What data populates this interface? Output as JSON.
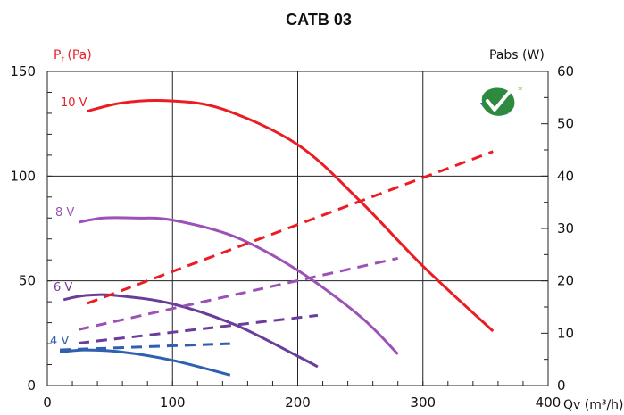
{
  "chart_data": {
    "type": "line",
    "title": "CATB 03",
    "x_axis": {
      "label": "Qv (m³/h)",
      "range": [
        0,
        400
      ],
      "ticks": [
        0,
        100,
        200,
        300,
        400
      ]
    },
    "y_left": {
      "label": "Pt (Pa)",
      "label_main": "P",
      "label_sub": "t",
      "label_unit": "(Pa)",
      "color": "#e8202a",
      "range": [
        0,
        150
      ],
      "ticks": [
        0,
        50,
        100,
        150
      ]
    },
    "y_right": {
      "label": "Pabs (W)",
      "range": [
        0,
        60
      ],
      "ticks": [
        0,
        10,
        20,
        30,
        40,
        50,
        60
      ]
    },
    "grid": true,
    "series": [
      {
        "name": "10 V",
        "color": "#ec1c24",
        "label_color": "#e8202a",
        "axis": "left",
        "style": "solid",
        "x": [
          32,
          60,
          97,
          140,
          200,
          250,
          300,
          356
        ],
        "y": [
          131,
          135,
          136,
          132,
          115,
          88,
          57,
          26
        ]
      },
      {
        "name": "8 V",
        "color": "#9b51b5",
        "label_color": "#9b51b5",
        "axis": "left",
        "style": "solid",
        "x": [
          25,
          45,
          70,
          100,
          150,
          200,
          250,
          280
        ],
        "y": [
          78,
          80,
          80,
          79,
          71,
          55,
          33,
          15
        ]
      },
      {
        "name": "6 V",
        "color": "#6a3d9a",
        "label_color": "#6a3d9a",
        "axis": "left",
        "style": "solid",
        "x": [
          13,
          30,
          55,
          100,
          150,
          200,
          216
        ],
        "y": [
          41,
          43,
          43,
          39,
          29,
          14,
          9
        ]
      },
      {
        "name": "4 V",
        "color": "#2f5fb0",
        "label_color": "#2f5fb0",
        "axis": "left",
        "style": "solid",
        "x": [
          10,
          30,
          60,
          100,
          146
        ],
        "y": [
          16,
          17,
          16,
          12,
          5
        ]
      },
      {
        "color": "#ec1c24",
        "axis": "right",
        "style": "dashed",
        "x": [
          32,
          356
        ],
        "y": [
          15.7,
          44.7
        ]
      },
      {
        "color": "#9b51b5",
        "axis": "right",
        "style": "dashed",
        "x": [
          25,
          280
        ],
        "y": [
          10.7,
          24.3
        ]
      },
      {
        "color": "#6a3d9a",
        "axis": "right",
        "style": "dashed",
        "x": [
          25,
          216
        ],
        "y": [
          8.1,
          13.4
        ]
      },
      {
        "color": "#2f5fb0",
        "axis": "right",
        "style": "dashed",
        "x": [
          10,
          146
        ],
        "y": [
          6.8,
          8.0
        ]
      }
    ]
  },
  "logo": {
    "name": "green-check-logo",
    "colors": [
      "#2d8a3e",
      "#6cc04a",
      "#1e73be"
    ]
  }
}
